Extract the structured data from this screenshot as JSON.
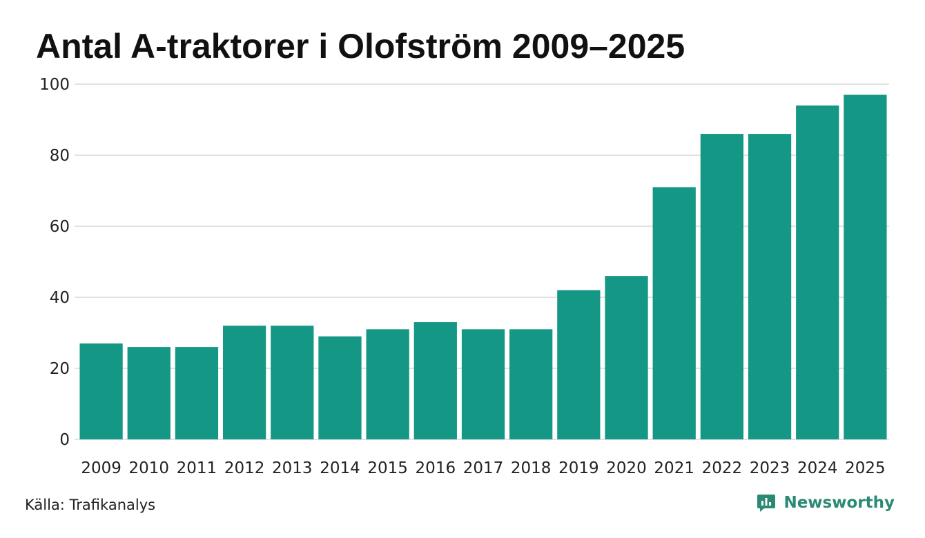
{
  "colors": {
    "bar": "#159786",
    "grid": "#e2e2e2",
    "brand": "#2a8a74",
    "text": "#222222"
  },
  "chart_data": {
    "type": "bar",
    "title": "Antal A-traktorer i Olofström 2009–2025",
    "xlabel": "",
    "ylabel": "",
    "categories": [
      "2009",
      "2010",
      "2011",
      "2012",
      "2013",
      "2014",
      "2015",
      "2016",
      "2017",
      "2018",
      "2019",
      "2020",
      "2021",
      "2022",
      "2023",
      "2024",
      "2025"
    ],
    "values": [
      27,
      26,
      26,
      32,
      32,
      29,
      31,
      33,
      31,
      31,
      42,
      46,
      71,
      86,
      86,
      94,
      97
    ],
    "yticks": [
      0,
      20,
      40,
      60,
      80,
      100
    ],
    "ylim": [
      0,
      100
    ],
    "grid": true
  },
  "footer": {
    "source": "Källa: Trafikanalys",
    "brand": "Newsworthy",
    "brand_icon": "newsworthy-logo-icon"
  }
}
